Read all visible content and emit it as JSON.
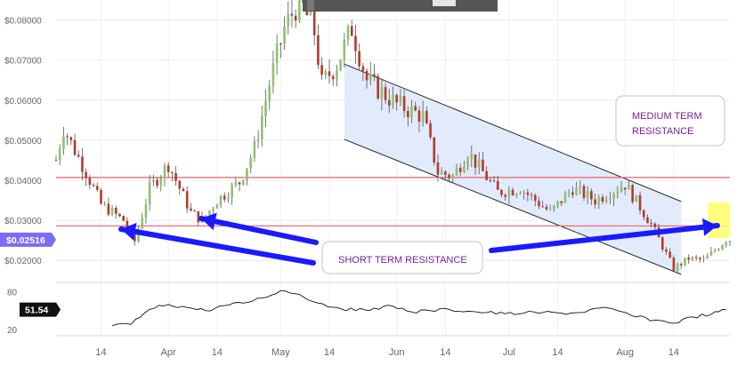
{
  "chart_data": [
    {
      "type": "candlestick",
      "title": "",
      "y_axis_side": "left",
      "ylim": [
        0.0145,
        0.085
      ],
      "grid": true,
      "y_tick_labels": [
        "$0.08000",
        "$0.07000",
        "$0.06000",
        "$0.05000",
        "$0.04000",
        "$0.03000",
        "$0.02000"
      ],
      "y_tick_values": [
        0.08,
        0.07,
        0.06,
        0.05,
        0.04,
        0.03,
        0.02
      ],
      "x_tick_labels": [
        {
          "label": "14",
          "date": "2017-03-14"
        },
        {
          "label": "Apr",
          "date": "2017-04-01"
        },
        {
          "label": "14",
          "date": "2017-04-14"
        },
        {
          "label": "May",
          "date": "2017-05-01"
        },
        {
          "label": "14",
          "date": "2017-05-14"
        },
        {
          "label": "Jun",
          "date": "2017-06-01"
        },
        {
          "label": "14",
          "date": "2017-06-14"
        },
        {
          "label": "Jul",
          "date": "2017-07-01"
        },
        {
          "label": "14",
          "date": "2017-07-14"
        },
        {
          "label": "Aug",
          "date": "2017-08-01"
        },
        {
          "label": "14",
          "date": "2017-08-14"
        }
      ],
      "x_range": [
        "2017-03-02",
        "2017-08-29"
      ],
      "current_price_label": "$0.02516",
      "current_price": 0.02516,
      "up_color": "#8dc26f",
      "down_color": "#b53a2b",
      "channel": {
        "upper": [
          {
            "date": "2017-05-18",
            "y": 0.069
          },
          {
            "date": "2017-08-16",
            "y": 0.0347
          }
        ],
        "lower": [
          {
            "date": "2017-05-18",
            "y": 0.0502
          },
          {
            "date": "2017-08-16",
            "y": 0.0165
          }
        ],
        "fill": "#dfe9fb"
      },
      "resistance_levels": [
        0.0407,
        0.0286
      ],
      "annotations": {
        "medium_term": "MEDIUM TERM\nRESISTANCE",
        "short_term": "SHORT TERM RESISTANCE"
      },
      "highlight_color": "#ffff66",
      "arrow_color": "#1a1aff"
    },
    {
      "type": "line",
      "title": "",
      "ylim": [
        10,
        95
      ],
      "y_tick_labels": [
        "80",
        "20"
      ],
      "y_tick_values": [
        80,
        20
      ],
      "current_value_label": "51.54",
      "current_value": 51.54,
      "x": [
        "2017-03-17",
        "2017-03-22",
        "2017-03-27",
        "2017-04-01",
        "2017-04-06",
        "2017-04-11",
        "2017-04-16",
        "2017-04-21",
        "2017-04-26",
        "2017-05-01",
        "2017-05-06",
        "2017-05-11",
        "2017-05-16",
        "2017-05-21",
        "2017-05-26",
        "2017-05-31",
        "2017-06-05",
        "2017-06-10",
        "2017-06-15",
        "2017-06-20",
        "2017-06-25",
        "2017-06-30",
        "2017-07-05",
        "2017-07-10",
        "2017-07-15",
        "2017-07-20",
        "2017-07-25",
        "2017-07-30",
        "2017-08-04",
        "2017-08-09",
        "2017-08-14",
        "2017-08-19",
        "2017-08-24",
        "2017-08-28"
      ],
      "values": [
        26,
        28,
        52,
        60,
        55,
        50,
        58,
        62,
        70,
        82,
        76,
        62,
        55,
        50,
        54,
        57,
        48,
        50,
        52,
        49,
        47,
        45,
        46,
        47,
        46,
        47,
        54,
        50,
        40,
        35,
        30,
        40,
        44,
        51.54
      ]
    }
  ]
}
